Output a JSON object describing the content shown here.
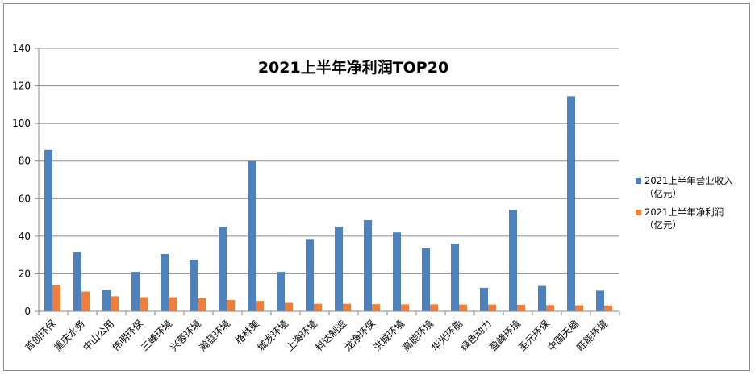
{
  "chart_data": {
    "type": "bar",
    "title": "2021上半年净利润TOP20",
    "xlabel": "",
    "ylabel": "",
    "ylim": [
      0,
      140
    ],
    "yticks": [
      0,
      20,
      40,
      60,
      80,
      100,
      120,
      140
    ],
    "grid": true,
    "legend_position": "right",
    "categories": [
      "首创环保",
      "重庆水务",
      "中山公用",
      "伟明环保",
      "三峰环境",
      "兴蓉环境",
      "瀚蓝环境",
      "格林美",
      "城发环境",
      "上海环境",
      "科达制造",
      "龙净环保",
      "洪城环境",
      "高能环境",
      "华光环能",
      "绿色动力",
      "盈峰环境",
      "圣元环保",
      "中国天楹",
      "旺能环境"
    ],
    "series": [
      {
        "name": "2021上半年营业收入（亿元）",
        "legend_lines": [
          "2021上半年营业收入",
          "（亿元）"
        ],
        "color": "#4f81bd",
        "values": [
          86,
          31.5,
          11.5,
          21,
          30.5,
          27.5,
          45,
          80,
          21,
          38.5,
          45,
          48.5,
          42,
          33.5,
          36,
          12.5,
          54,
          13.5,
          114.5,
          11
        ]
      },
      {
        "name": "2021上半年净利润（亿元）",
        "legend_lines": [
          "2021上半年净利润",
          "（亿元）"
        ],
        "color": "#f07e39",
        "values": [
          14,
          10.5,
          8,
          7.5,
          7.5,
          7,
          6,
          5.5,
          4.5,
          4,
          4,
          3.8,
          3.7,
          3.7,
          3.6,
          3.6,
          3.5,
          3.3,
          3.2,
          3.1
        ]
      }
    ]
  }
}
